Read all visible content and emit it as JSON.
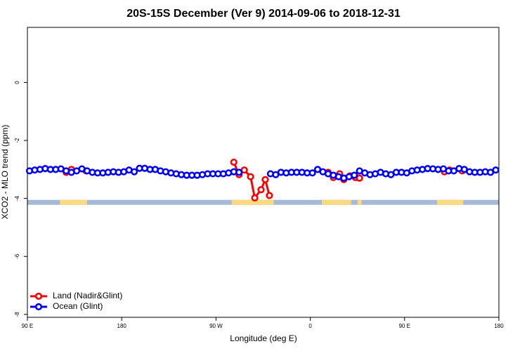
{
  "chart_data": {
    "type": "line",
    "title": "20S-15S December (Ver 9)   2014-09-06 to 2018-12-31",
    "x_label": "Longitude (deg E)",
    "y_label": "XCO2 - MLO trend (ppm)",
    "xlim": [
      90,
      540
    ],
    "xticks": [
      {
        "value": 90,
        "label": "90 E"
      },
      {
        "value": 180,
        "label": "180"
      },
      {
        "value": 270,
        "label": "90 W"
      },
      {
        "value": 360,
        "label": "0"
      },
      {
        "value": 450,
        "label": "90 E"
      },
      {
        "value": 540,
        "label": "180"
      }
    ],
    "ylim": [
      -8.1,
      1.9
    ],
    "yticks": [
      0,
      -2,
      -4,
      -6,
      -8
    ],
    "legend": "bottom-left",
    "surface_strip": {
      "y": [
        -4.05,
        -4.22
      ],
      "ocean_color": "#a5b9d9",
      "land_color": "#fbd97f",
      "land_ranges": [
        [
          121,
          147
        ],
        [
          285,
          325
        ],
        [
          371,
          399
        ],
        [
          405,
          409
        ],
        [
          481,
          506
        ]
      ]
    },
    "series": [
      {
        "name": "Land (Nadir&Glint)",
        "color": "#ff0000",
        "x": [
          127,
          132,
          146,
          null,
          287,
          292,
          297,
          303,
          307,
          313,
          317,
          321,
          null,
          377,
          382,
          388,
          392,
          398,
          403,
          407,
          null,
          488,
          493,
          505
        ],
        "values": [
          -3.1,
          -3.0,
          -3.05,
          null,
          -2.75,
          -3.18,
          -3.02,
          -3.25,
          -3.98,
          -3.7,
          -3.35,
          -3.9,
          null,
          -3.1,
          -3.28,
          -3.15,
          -3.35,
          -3.22,
          -3.28,
          -3.3,
          null,
          -3.08,
          -3.02,
          -3.05
        ]
      },
      {
        "name": "Ocean (Glint)",
        "color": "#0000ff",
        "x": [
          92,
          97,
          102,
          107,
          112,
          117,
          122,
          127,
          132,
          137,
          142,
          147,
          152,
          157,
          162,
          167,
          172,
          177,
          182,
          187,
          192,
          197,
          202,
          207,
          212,
          217,
          222,
          227,
          232,
          237,
          242,
          247,
          252,
          257,
          262,
          267,
          272,
          277,
          282,
          287,
          292,
          297,
          322,
          327,
          332,
          337,
          342,
          347,
          352,
          357,
          362,
          367,
          372,
          377,
          382,
          387,
          392,
          397,
          402,
          407,
          412,
          417,
          422,
          427,
          432,
          437,
          442,
          447,
          452,
          457,
          462,
          467,
          472,
          477,
          482,
          487,
          492,
          497,
          502,
          507,
          512,
          517,
          522,
          527,
          532,
          537
        ],
        "values": [
          -3.05,
          -3.02,
          -3.0,
          -2.97,
          -3.0,
          -3.0,
          -2.98,
          -3.05,
          -3.1,
          -3.05,
          -2.98,
          -3.05,
          -3.1,
          -3.12,
          -3.12,
          -3.1,
          -3.08,
          -3.1,
          -3.08,
          -3.02,
          -3.08,
          -2.96,
          -2.96,
          -3.0,
          -3.0,
          -3.05,
          -3.08,
          -3.12,
          -3.15,
          -3.18,
          -3.2,
          -3.2,
          -3.2,
          -3.18,
          -3.15,
          -3.15,
          -3.15,
          -3.15,
          -3.12,
          -3.08,
          -3.1,
          null,
          -3.15,
          -3.18,
          -3.1,
          -3.12,
          -3.1,
          -3.1,
          -3.1,
          -3.12,
          -3.12,
          -3.0,
          -3.08,
          -3.15,
          -3.2,
          -3.25,
          -3.3,
          -3.25,
          -3.2,
          -3.05,
          -3.12,
          -3.18,
          -3.15,
          -3.1,
          -3.15,
          -3.18,
          -3.1,
          -3.1,
          -3.12,
          -3.05,
          -3.02,
          -3.0,
          -2.97,
          -2.98,
          -3.0,
          -2.98,
          -3.05,
          -3.05,
          -2.97,
          -3.0,
          -3.08,
          -3.1,
          -3.1,
          -3.08,
          -3.1,
          -3.02
        ]
      }
    ]
  }
}
